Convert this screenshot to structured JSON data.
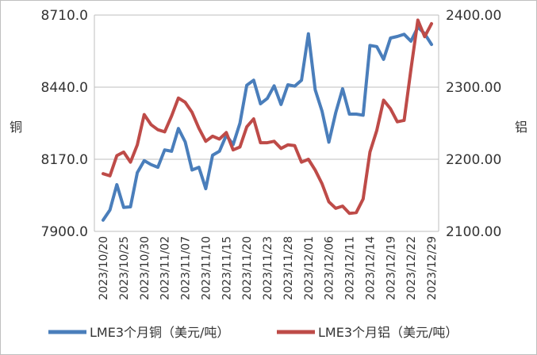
{
  "chart_data": {
    "type": "line",
    "title": "",
    "y_left_label": "铜",
    "y_right_label": "铝",
    "y_left_lim": [
      7900.0,
      8710.0
    ],
    "y_right_lim": [
      2100.0,
      2400.0
    ],
    "y_left_ticks": [
      "7900.0",
      "8170.0",
      "8440.0",
      "8710.0"
    ],
    "y_right_ticks": [
      "2100.00",
      "2200.00",
      "2300.00",
      "2400.00"
    ],
    "grid": "horizontal",
    "legend_position": "bottom",
    "x_tick_labels": [
      "2023/10/20",
      "2023/10/25",
      "2023/10/30",
      "2023/11/02",
      "2023/11/07",
      "2023/11/10",
      "2023/11/15",
      "2023/11/20",
      "2023/11/23",
      "2023/11/28",
      "2023/12/01",
      "2023/12/06",
      "2023/12/11",
      "2023/12/14",
      "2023/12/19",
      "2023/12/22",
      "2023/12/29"
    ],
    "series": [
      {
        "name": "LME3个月铜（美元/吨）",
        "axis": "left",
        "color": "#4a7ebb",
        "values": [
          7942,
          7980,
          8075,
          7990,
          7992,
          8120,
          8165,
          8150,
          8140,
          8205,
          8200,
          8285,
          8235,
          8130,
          8140,
          8060,
          8185,
          8200,
          8260,
          8225,
          8305,
          8447,
          8466,
          8378,
          8398,
          8445,
          8375,
          8449,
          8444,
          8466,
          8640,
          8430,
          8350,
          8234,
          8345,
          8434,
          8339,
          8339,
          8335,
          8596,
          8592,
          8544,
          8624,
          8630,
          8638,
          8612,
          8665,
          8640,
          8600
        ]
      },
      {
        "name": "LME3个月铝（美元/吨）",
        "axis": "right",
        "color": "#be4b48",
        "values": [
          2180,
          2177,
          2205,
          2210,
          2196,
          2220,
          2262,
          2248,
          2241,
          2238,
          2260,
          2285,
          2279,
          2265,
          2243,
          2225,
          2232,
          2228,
          2237,
          2213,
          2217,
          2245,
          2256,
          2223,
          2223,
          2225,
          2215,
          2220,
          2219,
          2196,
          2200,
          2185,
          2166,
          2141,
          2132,
          2135,
          2125,
          2126,
          2145,
          2210,
          2240,
          2282,
          2270,
          2252,
          2254,
          2325,
          2393,
          2370,
          2388
        ]
      }
    ]
  }
}
